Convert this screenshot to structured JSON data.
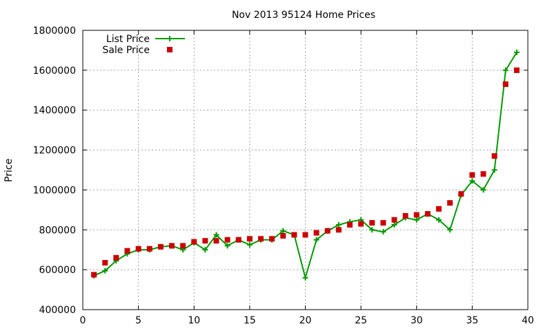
{
  "chart_data": {
    "type": "line",
    "title": "Nov 2013 95124 Home Prices",
    "xlabel": "",
    "ylabel": "Price",
    "xlim": [
      0,
      40
    ],
    "ylim": [
      400000,
      1800000
    ],
    "xticks": [
      0,
      5,
      10,
      15,
      20,
      25,
      30,
      35,
      40
    ],
    "yticks": [
      400000,
      600000,
      800000,
      1000000,
      1200000,
      1400000,
      1600000,
      1800000
    ],
    "grid": true,
    "legend_position": "top-left",
    "series": [
      {
        "name": "List Price",
        "style": "line+cross",
        "color": "#009900",
        "x": [
          1,
          2,
          3,
          4,
          5,
          6,
          7,
          8,
          9,
          10,
          11,
          12,
          13,
          14,
          15,
          16,
          17,
          18,
          19,
          20,
          21,
          22,
          23,
          24,
          25,
          26,
          27,
          28,
          29,
          30,
          31,
          32,
          33,
          34,
          35,
          36,
          37,
          38,
          39
        ],
        "y": [
          570000,
          595000,
          645000,
          680000,
          700000,
          700000,
          715000,
          720000,
          700000,
          735000,
          700000,
          775000,
          720000,
          750000,
          725000,
          750000,
          750000,
          795000,
          775000,
          560000,
          750000,
          795000,
          825000,
          840000,
          850000,
          800000,
          790000,
          825000,
          860000,
          850000,
          880000,
          850000,
          800000,
          975000,
          1045000,
          1000000,
          1100000,
          1600000,
          1690000
        ]
      },
      {
        "name": "Sale Price",
        "style": "square",
        "color": "#cc0000",
        "x": [
          1,
          2,
          3,
          4,
          5,
          6,
          7,
          8,
          9,
          10,
          11,
          12,
          13,
          14,
          15,
          16,
          17,
          18,
          19,
          20,
          21,
          22,
          23,
          24,
          25,
          26,
          27,
          28,
          29,
          30,
          31,
          32,
          33,
          34,
          35,
          36,
          37,
          38,
          39
        ],
        "y": [
          575000,
          635000,
          660000,
          695000,
          705000,
          705000,
          715000,
          720000,
          720000,
          740000,
          745000,
          745000,
          750000,
          750000,
          755000,
          755000,
          755000,
          770000,
          775000,
          775000,
          785000,
          795000,
          800000,
          825000,
          830000,
          835000,
          835000,
          850000,
          870000,
          875000,
          880000,
          905000,
          935000,
          980000,
          1075000,
          1080000,
          1170000,
          1530000,
          1600000
        ]
      }
    ]
  }
}
